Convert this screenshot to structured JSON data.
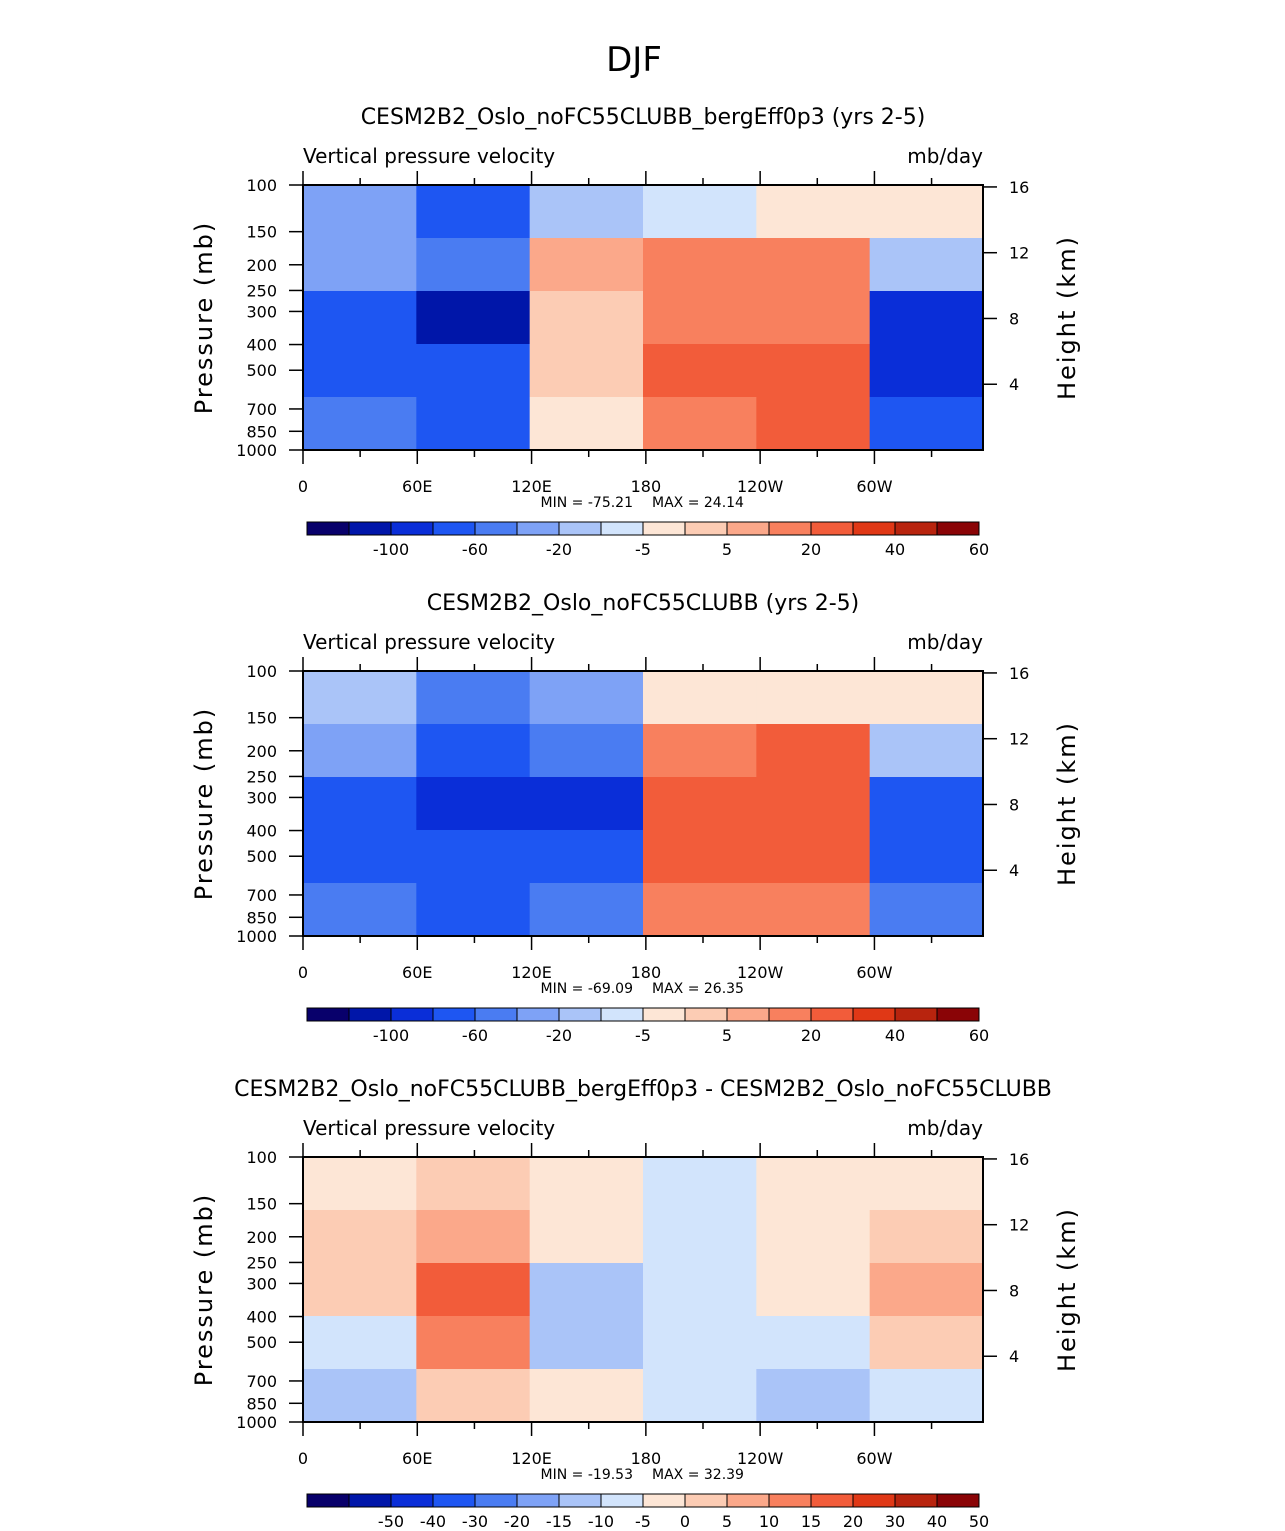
{
  "figure": {
    "super_title": "DJF"
  },
  "chart_data": [
    {
      "type": "heatmap",
      "title": "CESM2B2_Oslo_noFC55CLUBB_bergEff0p3 (yrs 2-5)",
      "variable": "Vertical pressure velocity",
      "units": "mb/day",
      "ylabel": "Pressure (mb)",
      "ylabel_right": "Height (km)",
      "x_ticks": [
        "0",
        "60E",
        "120E",
        "180",
        "120W",
        "60W"
      ],
      "x_tick_values": [
        0,
        60,
        120,
        180,
        240,
        300
      ],
      "xlim": [
        0,
        357
      ],
      "y_ticks": [
        "100",
        "150",
        "200",
        "250",
        "300",
        "400",
        "500",
        "700",
        "850",
        "1000"
      ],
      "y_tick_values": [
        100,
        150,
        200,
        250,
        300,
        400,
        500,
        700,
        850,
        1000
      ],
      "ylim": [
        1000,
        100
      ],
      "height_ticks": [
        "16",
        "12",
        "8",
        "4"
      ],
      "height_tick_values": [
        16,
        12,
        8,
        4
      ],
      "min_label": "MIN = -75.21",
      "max_label": "MAX = 24.14",
      "min": -75.21,
      "max": 24.14,
      "colorbar_labels": [
        "-100",
        "-60",
        "-20",
        "-5",
        "5",
        "20",
        "40",
        "60"
      ],
      "colorbar_colors": [
        "#08006b",
        "#0016a9",
        "#0a2ed8",
        "#1e56f2",
        "#4a7cf2",
        "#7ea2f6",
        "#aac4f8",
        "#d2e4fc",
        "#fde6d6",
        "#fcccb4",
        "#fba88a",
        "#f8805e",
        "#f25c3a",
        "#e03816",
        "#b8240e",
        "#8a0406"
      ],
      "cells": [
        [
          5,
          3,
          6,
          7,
          8,
          8
        ],
        [
          5,
          4,
          10,
          11,
          11,
          6
        ],
        [
          3,
          1,
          9,
          11,
          11,
          2
        ],
        [
          3,
          3,
          9,
          12,
          12,
          2
        ],
        [
          4,
          3,
          8,
          11,
          12,
          3
        ]
      ]
    },
    {
      "type": "heatmap",
      "title": "CESM2B2_Oslo_noFC55CLUBB (yrs 2-5)",
      "variable": "Vertical pressure velocity",
      "units": "mb/day",
      "ylabel": "Pressure (mb)",
      "ylabel_right": "Height (km)",
      "x_ticks": [
        "0",
        "60E",
        "120E",
        "180",
        "120W",
        "60W"
      ],
      "x_tick_values": [
        0,
        60,
        120,
        180,
        240,
        300
      ],
      "xlim": [
        0,
        357
      ],
      "y_ticks": [
        "100",
        "150",
        "200",
        "250",
        "300",
        "400",
        "500",
        "700",
        "850",
        "1000"
      ],
      "y_tick_values": [
        100,
        150,
        200,
        250,
        300,
        400,
        500,
        700,
        850,
        1000
      ],
      "ylim": [
        1000,
        100
      ],
      "height_ticks": [
        "16",
        "12",
        "8",
        "4"
      ],
      "height_tick_values": [
        16,
        12,
        8,
        4
      ],
      "min_label": "MIN = -69.09",
      "max_label": "MAX = 26.35",
      "min": -69.09,
      "max": 26.35,
      "colorbar_labels": [
        "-100",
        "-60",
        "-20",
        "-5",
        "5",
        "20",
        "40",
        "60"
      ],
      "colorbar_colors": [
        "#08006b",
        "#0016a9",
        "#0a2ed8",
        "#1e56f2",
        "#4a7cf2",
        "#7ea2f6",
        "#aac4f8",
        "#d2e4fc",
        "#fde6d6",
        "#fcccb4",
        "#fba88a",
        "#f8805e",
        "#f25c3a",
        "#e03816",
        "#b8240e",
        "#8a0406"
      ],
      "cells": [
        [
          6,
          4,
          5,
          8,
          8,
          8
        ],
        [
          5,
          3,
          4,
          11,
          12,
          6
        ],
        [
          3,
          2,
          2,
          12,
          12,
          3
        ],
        [
          3,
          3,
          3,
          12,
          12,
          3
        ],
        [
          4,
          3,
          4,
          11,
          11,
          4
        ]
      ]
    },
    {
      "type": "heatmap",
      "title": "CESM2B2_Oslo_noFC55CLUBB_bergEff0p3 - CESM2B2_Oslo_noFC55CLUBB",
      "variable": "Vertical pressure velocity",
      "units": "mb/day",
      "ylabel": "Pressure (mb)",
      "ylabel_right": "Height (km)",
      "x_ticks": [
        "0",
        "60E",
        "120E",
        "180",
        "120W",
        "60W"
      ],
      "x_tick_values": [
        0,
        60,
        120,
        180,
        240,
        300
      ],
      "xlim": [
        0,
        357
      ],
      "y_ticks": [
        "100",
        "150",
        "200",
        "250",
        "300",
        "400",
        "500",
        "700",
        "850",
        "1000"
      ],
      "y_tick_values": [
        100,
        150,
        200,
        250,
        300,
        400,
        500,
        700,
        850,
        1000
      ],
      "ylim": [
        1000,
        100
      ],
      "height_ticks": [
        "16",
        "12",
        "8",
        "4"
      ],
      "height_tick_values": [
        16,
        12,
        8,
        4
      ],
      "min_label": "MIN = -19.53",
      "max_label": "MAX = 32.39",
      "min": -19.53,
      "max": 32.39,
      "colorbar_labels": [
        "-50",
        "-40",
        "-30",
        "-20",
        "-15",
        "-10",
        "-5",
        "0",
        "5",
        "10",
        "15",
        "20",
        "30",
        "40",
        "50"
      ],
      "colorbar_colors": [
        "#08006b",
        "#0016a9",
        "#0a2ed8",
        "#1e56f2",
        "#4a7cf2",
        "#7ea2f6",
        "#aac4f8",
        "#d2e4fc",
        "#fde6d6",
        "#fcccb4",
        "#fba88a",
        "#f8805e",
        "#f25c3a",
        "#e03816",
        "#b8240e",
        "#8a0406"
      ],
      "cells": [
        [
          8,
          9,
          8,
          7,
          8,
          8
        ],
        [
          9,
          10,
          8,
          7,
          8,
          9
        ],
        [
          9,
          12,
          6,
          7,
          8,
          10
        ],
        [
          7,
          11,
          6,
          7,
          7,
          9
        ],
        [
          6,
          9,
          8,
          7,
          6,
          7
        ]
      ]
    }
  ]
}
